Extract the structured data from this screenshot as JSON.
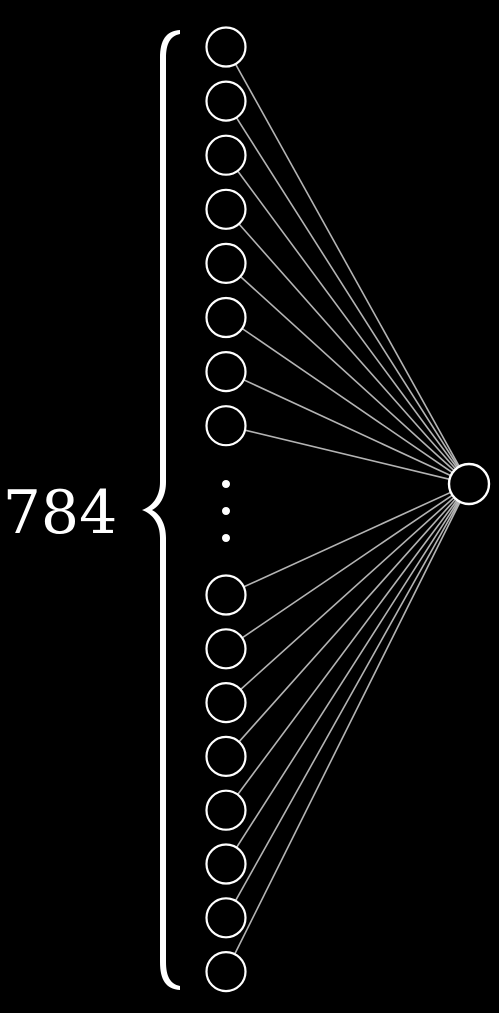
{
  "diagram": {
    "input_count_label": "784",
    "input_neurons_top": 8,
    "input_neurons_bottom": 8,
    "output_neurons": 1,
    "colors": {
      "background": "#000000",
      "neuron_stroke": "#ffffff",
      "connection": "#b4b4b4",
      "brace": "#ffffff",
      "ellipsis": "#ffffff"
    }
  }
}
